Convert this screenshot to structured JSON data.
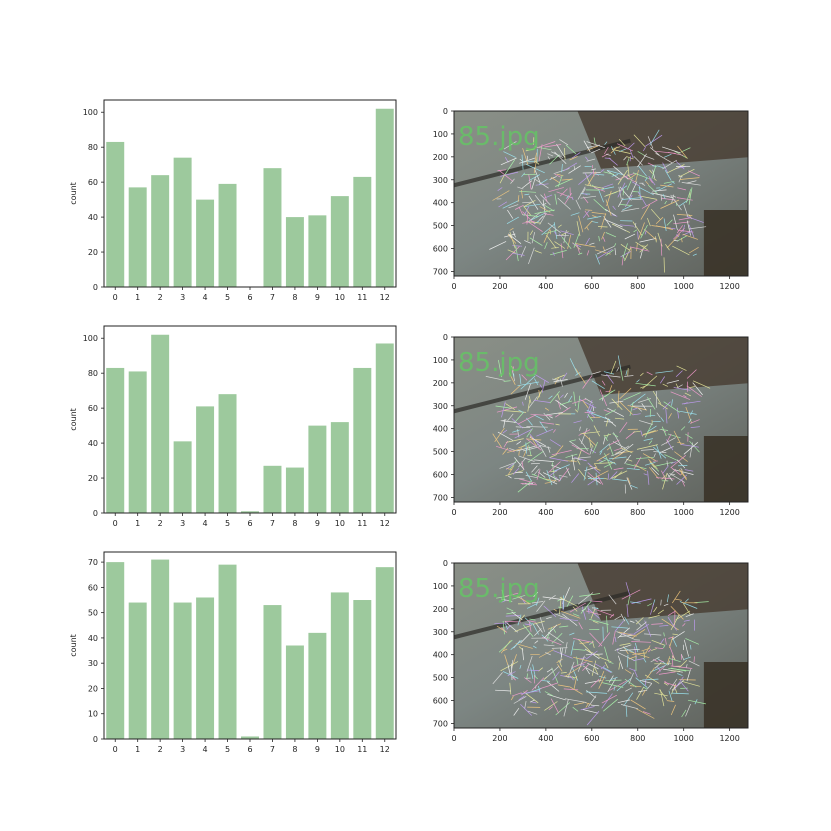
{
  "figure": {
    "bar_color": "#9dc99d",
    "axis_color": "#222222"
  },
  "chart_data": [
    {
      "type": "bar",
      "categories": [
        "0",
        "1",
        "2",
        "3",
        "4",
        "5",
        "6",
        "7",
        "8",
        "9",
        "10",
        "11",
        "12"
      ],
      "values": [
        83,
        57,
        64,
        74,
        50,
        59,
        0,
        68,
        40,
        41,
        52,
        63,
        102
      ],
      "ylabel": "count",
      "ylim": [
        0,
        107
      ],
      "yticks": [
        0,
        20,
        40,
        60,
        80,
        100
      ],
      "grid": false
    },
    {
      "type": "bar",
      "categories": [
        "0",
        "1",
        "2",
        "3",
        "4",
        "5",
        "6",
        "7",
        "8",
        "9",
        "10",
        "11",
        "12"
      ],
      "values": [
        83,
        81,
        102,
        41,
        61,
        68,
        1,
        27,
        26,
        50,
        52,
        83,
        97
      ],
      "ylabel": "count",
      "ylim": [
        0,
        107
      ],
      "yticks": [
        0,
        20,
        40,
        60,
        80,
        100
      ],
      "grid": false
    },
    {
      "type": "bar",
      "categories": [
        "0",
        "1",
        "2",
        "3",
        "4",
        "5",
        "6",
        "7",
        "8",
        "9",
        "10",
        "11",
        "12"
      ],
      "values": [
        70,
        54,
        71,
        54,
        56,
        69,
        1,
        53,
        37,
        42,
        58,
        55,
        68
      ],
      "ylabel": "count",
      "ylim": [
        0,
        74
      ],
      "yticks": [
        0,
        10,
        20,
        30,
        40,
        50,
        60,
        70
      ],
      "grid": false
    }
  ],
  "images": [
    {
      "overlay_text": "85.jpg",
      "xticks": [
        0,
        200,
        400,
        600,
        800,
        1000,
        1200
      ],
      "yticks": [
        0,
        100,
        200,
        300,
        400,
        500,
        600,
        700
      ],
      "xlim": [
        0,
        1280
      ],
      "ylim": [
        720,
        0
      ]
    },
    {
      "overlay_text": "85.jpg",
      "xticks": [
        0,
        200,
        400,
        600,
        800,
        1000,
        1200
      ],
      "yticks": [
        0,
        100,
        200,
        300,
        400,
        500,
        600,
        700
      ],
      "xlim": [
        0,
        1280
      ],
      "ylim": [
        720,
        0
      ]
    },
    {
      "overlay_text": "85.jpg",
      "xticks": [
        0,
        200,
        400,
        600,
        800,
        1000,
        1200
      ],
      "yticks": [
        0,
        100,
        200,
        300,
        400,
        500,
        600,
        700
      ],
      "xlim": [
        0,
        1280
      ],
      "ylim": [
        720,
        0
      ]
    }
  ]
}
